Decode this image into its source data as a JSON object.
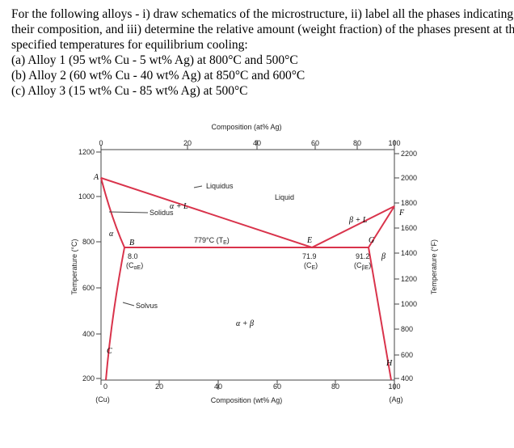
{
  "question": {
    "lines": [
      "For the following alloys - i) draw schematics of the microstructure, ii) label all the phases indicating",
      "their composition, and iii) determine the relative amount (weight fraction) of the phases present at the",
      "specified temperatures for equilibrium cooling:",
      "(a) Alloy 1 (95 wt% Cu - 5 wt% Ag) at 800°C and 500°C",
      "(b) Alloy 2 (60 wt% Cu - 40 wt% Ag) at 850°C and 600°C",
      "(c) Alloy 3 (15 wt% Cu - 85 wt% Ag) at 500°C"
    ]
  },
  "figure": {
    "top_axis_title": "Composition (at% Ag)",
    "top_ticks": [
      "0",
      "20",
      "40",
      "60",
      "80",
      "100"
    ],
    "bottom_axis_title": "Composition (wt% Ag)",
    "bottom_ticks": [
      "0",
      "20",
      "40",
      "60",
      "80",
      "100"
    ],
    "left_axis_title": "Temperature (°C)",
    "left_ticks": [
      "1200",
      "1000",
      "800",
      "600",
      "400",
      "200"
    ],
    "right_axis_title": "Temperature (°F)",
    "right_ticks": [
      "2200",
      "2000",
      "1800",
      "1600",
      "1400",
      "1200",
      "1000",
      "800",
      "600",
      "400"
    ],
    "left_end": "(Cu)",
    "right_end": "(Ag)",
    "points": [
      "A",
      "B",
      "C",
      "E",
      "F",
      "G",
      "H"
    ],
    "regions": {
      "liquidus": "Liquidus",
      "liquid": "Liquid",
      "solidus": "Solidus",
      "alpha_l": "α + L",
      "beta_l": "β + L",
      "alpha": "α",
      "beta": "β",
      "solvus": "Solvus",
      "alpha_beta": "α + β"
    },
    "eutectic": {
      "pre": "779°C (T",
      "sub": "E",
      "post": ")"
    },
    "c_alpha": {
      "value": "8.0",
      "pre": "(C",
      "sub": "αE",
      "post": ")"
    },
    "c_e": {
      "value": "71.9",
      "pre": "(C",
      "sub": "E",
      "post": ")"
    },
    "c_beta": {
      "value": "91.2",
      "pre": "(C",
      "sub": "βE",
      "post": ")"
    }
  }
}
